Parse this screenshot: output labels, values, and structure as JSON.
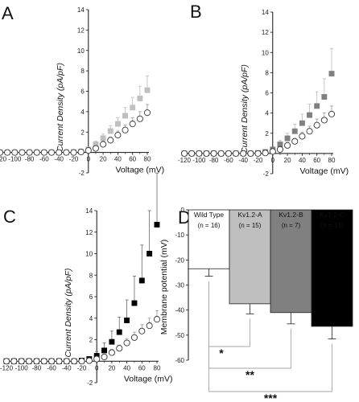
{
  "colors": {
    "wild_type": "#ffffff",
    "kv12a": "#bfbfbf",
    "kv12b": "#808080",
    "kv12c": "#000000",
    "axis": "#111111",
    "bracket": "#a6a6a6"
  },
  "chart_data": [
    {
      "panel": "A",
      "type": "scatter",
      "xlabel": "Voltage (mV)",
      "ylabel": "Current Density (pA/pF)",
      "xlim": [
        -120,
        80
      ],
      "ylim": [
        -2,
        14
      ],
      "xticks": [
        -120,
        -100,
        -80,
        -60,
        -40,
        -20,
        0,
        20,
        40,
        60,
        80
      ],
      "yticks": [
        -2,
        2,
        4,
        6,
        8,
        10,
        12,
        14
      ],
      "series": [
        {
          "marker": "square",
          "color": "#bfbfbf",
          "x": [
            -120,
            -110,
            -100,
            -90,
            -80,
            -70,
            -60,
            -50,
            -40,
            -30,
            -20,
            -10,
            0,
            10,
            20,
            30,
            40,
            50,
            60,
            70,
            80
          ],
          "y": [
            0,
            0,
            0,
            0,
            0,
            0,
            0,
            0,
            0,
            0,
            0.05,
            0.1,
            0.3,
            0.8,
            1.4,
            2.1,
            2.8,
            3.6,
            4.4,
            5.3,
            6.1
          ],
          "err": [
            0,
            0,
            0,
            0,
            0,
            0,
            0,
            0,
            0,
            0,
            0.1,
            0.1,
            0.2,
            0.3,
            0.4,
            0.5,
            0.6,
            0.8,
            1.0,
            1.2,
            1.4
          ]
        },
        {
          "marker": "circle-open",
          "color": "#ffffff",
          "x": [
            -120,
            -110,
            -100,
            -90,
            -80,
            -70,
            -60,
            -50,
            -40,
            -30,
            -20,
            -10,
            0,
            10,
            20,
            30,
            40,
            50,
            60,
            70,
            80
          ],
          "y": [
            0,
            0,
            0,
            0,
            0,
            0,
            0,
            0,
            0,
            0,
            0,
            0.05,
            0.2,
            0.4,
            0.8,
            1.2,
            1.7,
            2.2,
            2.8,
            3.3,
            3.9
          ],
          "err": [
            0,
            0,
            0,
            0,
            0,
            0,
            0,
            0,
            0,
            0,
            0,
            0.05,
            0.1,
            0.2,
            0.3,
            0.3,
            0.4,
            0.5,
            0.6,
            0.7,
            0.8
          ]
        }
      ]
    },
    {
      "panel": "B",
      "type": "scatter",
      "xlabel": "Voltage (mV)",
      "ylabel": "Current Density (pA/pF)",
      "xlim": [
        -120,
        80
      ],
      "ylim": [
        -2,
        14
      ],
      "xticks": [
        -120,
        -100,
        -80,
        -60,
        -40,
        -20,
        0,
        20,
        40,
        60,
        80
      ],
      "yticks": [
        -2,
        2,
        4,
        6,
        8,
        10,
        12,
        14
      ],
      "series": [
        {
          "marker": "square",
          "color": "#808080",
          "x": [
            -120,
            -110,
            -100,
            -90,
            -80,
            -70,
            -60,
            -50,
            -40,
            -30,
            -20,
            -10,
            0,
            10,
            20,
            30,
            40,
            50,
            60,
            70,
            80
          ],
          "y": [
            0,
            0,
            0,
            0,
            0,
            0,
            0,
            0,
            0,
            0,
            0.05,
            0.15,
            0.4,
            0.9,
            1.5,
            2.2,
            3.0,
            3.8,
            4.7,
            5.6,
            7.9
          ],
          "err": [
            0,
            0,
            0,
            0,
            0,
            0,
            0,
            0,
            0,
            0,
            0.1,
            0.1,
            0.2,
            0.4,
            0.5,
            0.7,
            0.9,
            1.1,
            1.4,
            1.8,
            2.5
          ]
        },
        {
          "marker": "circle-open",
          "color": "#ffffff",
          "x": [
            -120,
            -110,
            -100,
            -90,
            -80,
            -70,
            -60,
            -50,
            -40,
            -30,
            -20,
            -10,
            0,
            10,
            20,
            30,
            40,
            50,
            60,
            70,
            80
          ],
          "y": [
            0,
            0,
            0,
            0,
            0,
            0,
            0,
            0,
            0,
            0,
            0,
            0.05,
            0.2,
            0.4,
            0.8,
            1.2,
            1.7,
            2.2,
            2.8,
            3.3,
            3.9
          ],
          "err": [
            0,
            0,
            0,
            0,
            0,
            0,
            0,
            0,
            0,
            0,
            0,
            0.05,
            0.1,
            0.2,
            0.3,
            0.3,
            0.4,
            0.5,
            0.6,
            0.7,
            0.8
          ]
        }
      ]
    },
    {
      "panel": "C",
      "type": "scatter",
      "xlabel": "Voltage (mV)",
      "ylabel": "Current Density (pA/pF)",
      "xlim": [
        -120,
        80
      ],
      "ylim": [
        -2,
        14
      ],
      "xticks": [
        -120,
        -100,
        -80,
        -60,
        -40,
        -20,
        0,
        20,
        40,
        60,
        80
      ],
      "yticks": [
        -2,
        2,
        4,
        6,
        8,
        10,
        12,
        14
      ],
      "series": [
        {
          "marker": "square",
          "color": "#000000",
          "x": [
            -120,
            -110,
            -100,
            -90,
            -80,
            -70,
            -60,
            -50,
            -40,
            -30,
            -20,
            -10,
            0,
            10,
            20,
            30,
            40,
            50,
            60,
            70,
            80
          ],
          "y": [
            0,
            0,
            0,
            0,
            0,
            0,
            0,
            0,
            0,
            0,
            0.05,
            0.2,
            0.5,
            1.0,
            1.8,
            2.7,
            3.8,
            5.4,
            7.5,
            10.0,
            12.7
          ],
          "err": [
            0,
            0,
            0,
            0,
            0,
            0,
            0,
            0,
            0,
            0,
            0.1,
            0.2,
            0.4,
            0.7,
            1.0,
            1.4,
            1.9,
            2.5,
            3.3,
            4.0,
            4.8
          ]
        },
        {
          "marker": "circle-open",
          "color": "#ffffff",
          "x": [
            -120,
            -110,
            -100,
            -90,
            -80,
            -70,
            -60,
            -50,
            -40,
            -30,
            -20,
            -10,
            0,
            10,
            20,
            30,
            40,
            50,
            60,
            70,
            80
          ],
          "y": [
            0,
            0,
            0,
            0,
            0,
            0,
            0,
            0,
            0,
            0,
            0,
            0.05,
            0.2,
            0.4,
            0.8,
            1.2,
            1.7,
            2.2,
            2.8,
            3.3,
            3.9
          ],
          "err": [
            0,
            0,
            0,
            0,
            0,
            0,
            0,
            0,
            0,
            0,
            0,
            0.05,
            0.1,
            0.2,
            0.3,
            0.3,
            0.4,
            0.5,
            0.6,
            0.7,
            0.8
          ]
        }
      ]
    },
    {
      "panel": "D",
      "type": "bar",
      "ylabel": "Membrane potential (mV)",
      "ylim": [
        -60,
        0
      ],
      "yticks": [
        0,
        -10,
        -20,
        -30,
        -40,
        -50,
        -60
      ],
      "categories": [
        "Wild Type",
        "Kv1.2-A",
        "Kv1.2-B",
        "Kv1.2-C"
      ],
      "n_labels": [
        "(n = 16)",
        "(n = 15)",
        "(n = 7)",
        "(n = 13)"
      ],
      "values": [
        -23.5,
        -37.5,
        -41,
        -46.5
      ],
      "errors": [
        3,
        4,
        4.5,
        5
      ],
      "colors": [
        "#ffffff",
        "#bfbfbf",
        "#808080",
        "#000000"
      ],
      "significance": [
        {
          "from": 0,
          "to": 1,
          "label": "*"
        },
        {
          "from": 0,
          "to": 2,
          "label": "**"
        },
        {
          "from": 0,
          "to": 3,
          "label": "***"
        }
      ]
    }
  ]
}
